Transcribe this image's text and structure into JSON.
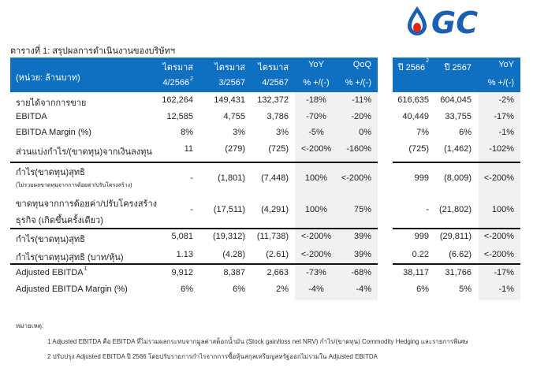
{
  "title": "ตารางที่ 1: สรุปผลการดำเนินงานของบริษัทฯ",
  "logo_text": "GC",
  "colors": {
    "header": "#0f6fc0",
    "shade": "#f1f1f1",
    "logo_blue": "#1a5fb4",
    "logo_red": "#e2231a"
  },
  "header": {
    "unit": "(หน่วย: ล้านบาท)",
    "cols": [
      {
        "l1": "ไตรมาส",
        "l2": "4/2566",
        "sup": "2"
      },
      {
        "l1": "ไตรมาส",
        "l2": "3/2567",
        "sup": ""
      },
      {
        "l1": "ไตรมาส",
        "l2": "4/2567",
        "sup": ""
      },
      {
        "l1": "YoY",
        "l2": "% +/(-)",
        "sup": ""
      },
      {
        "l1": "QoQ",
        "l2": "% +/(-)",
        "sup": ""
      },
      {
        "l1": "ปี 2566",
        "l2": "",
        "sup": "2"
      },
      {
        "l1": "ปี 2567",
        "l2": "",
        "sup": ""
      },
      {
        "l1": "YoY",
        "l2": "% +/(-)",
        "sup": ""
      }
    ]
  },
  "rows": [
    {
      "label": "รายได้จากการขาย",
      "values": [
        "162,264",
        "149,431",
        "132,372",
        "-18%",
        "-11%",
        "616,635",
        "604,045",
        "-2%"
      ]
    },
    {
      "label": "EBITDA",
      "values": [
        "12,585",
        "4,755",
        "3,786",
        "-70%",
        "-20%",
        "40,449",
        "33,755",
        "-17%"
      ]
    },
    {
      "label": "EBITDA Margin (%)",
      "values": [
        "8%",
        "3%",
        "3%",
        "-5%",
        "0%",
        "7%",
        "6%",
        "-1%"
      ]
    },
    {
      "label": "ส่วนแบ่งกำไร/(ขาดทุน)จากเงินลงทุน",
      "values": [
        "11",
        "(279)",
        "(725)",
        "<-200%",
        "-160%",
        "(725)",
        "(1,462)",
        "-102%"
      ]
    },
    {
      "label": "กำไร(ขาดทุน)สุทธิ",
      "sublabel": "(ไม่รวมผลขาดทุนจากการด้อยค่า/ปรับโครงสร้าง)",
      "values": [
        "-",
        "(1,801)",
        "(7,448)",
        "100%",
        "<-200%",
        "999",
        "(8,009)",
        "<-200%"
      ]
    },
    {
      "label": "ขาดทุนจากการด้อยค่า/ปรับโครงสร้าง",
      "label2": "ธุรกิจ (เกิดขึ้นครั้งเดียว)",
      "values": [
        "-",
        "(17,511)",
        "(4,291)",
        "100%",
        "75%",
        "-",
        "(21,802)",
        "100%"
      ]
    },
    {
      "label": "กำไร(ขาดทุน)สุทธิ",
      "values": [
        "5,081",
        "(19,312)",
        "(11,738)",
        "<-200%",
        "39%",
        "999",
        "(29,811)",
        "<-200%"
      ]
    },
    {
      "label": "กำไร(ขาดทุน)สุทธิ (บาท/หุ้น)",
      "values": [
        "1.13",
        "(4.28)",
        "(2.61)",
        "<-200%",
        "39%",
        "0.22",
        "(6.62)",
        "<-200%"
      ]
    },
    {
      "label": "Adjusted EBITDA",
      "sup": "1",
      "values": [
        "9,912",
        "8,387",
        "2,663",
        "-73%",
        "-68%",
        "38,117",
        "31,766",
        "-17%"
      ]
    },
    {
      "label": "Adjusted EBITDA Margin (%)",
      "values": [
        "6%",
        "6%",
        "2%",
        "-4%",
        "-4%",
        "6%",
        "5%",
        "-1%"
      ]
    }
  ],
  "notes": {
    "heading": "หมายเหตุ:",
    "items": [
      "1  Adjusted EBITDA คือ EBITDA ที่ไม่รวมผลกระทบจากมูลค่าสต็อกน้ำมัน (Stock gain/loss net NRV) กำไร/(ขาดทุน) Commodity Hedging และรายการพิเศษ",
      "2 ปรับปรุง Adjusted EBITDA ปี 2566 โดยปรับรายการกำไรจากการซื้อหุ้นสกุลเหรียญสหรัฐออกไม่รวมใน Adjusted EBITDA"
    ]
  }
}
